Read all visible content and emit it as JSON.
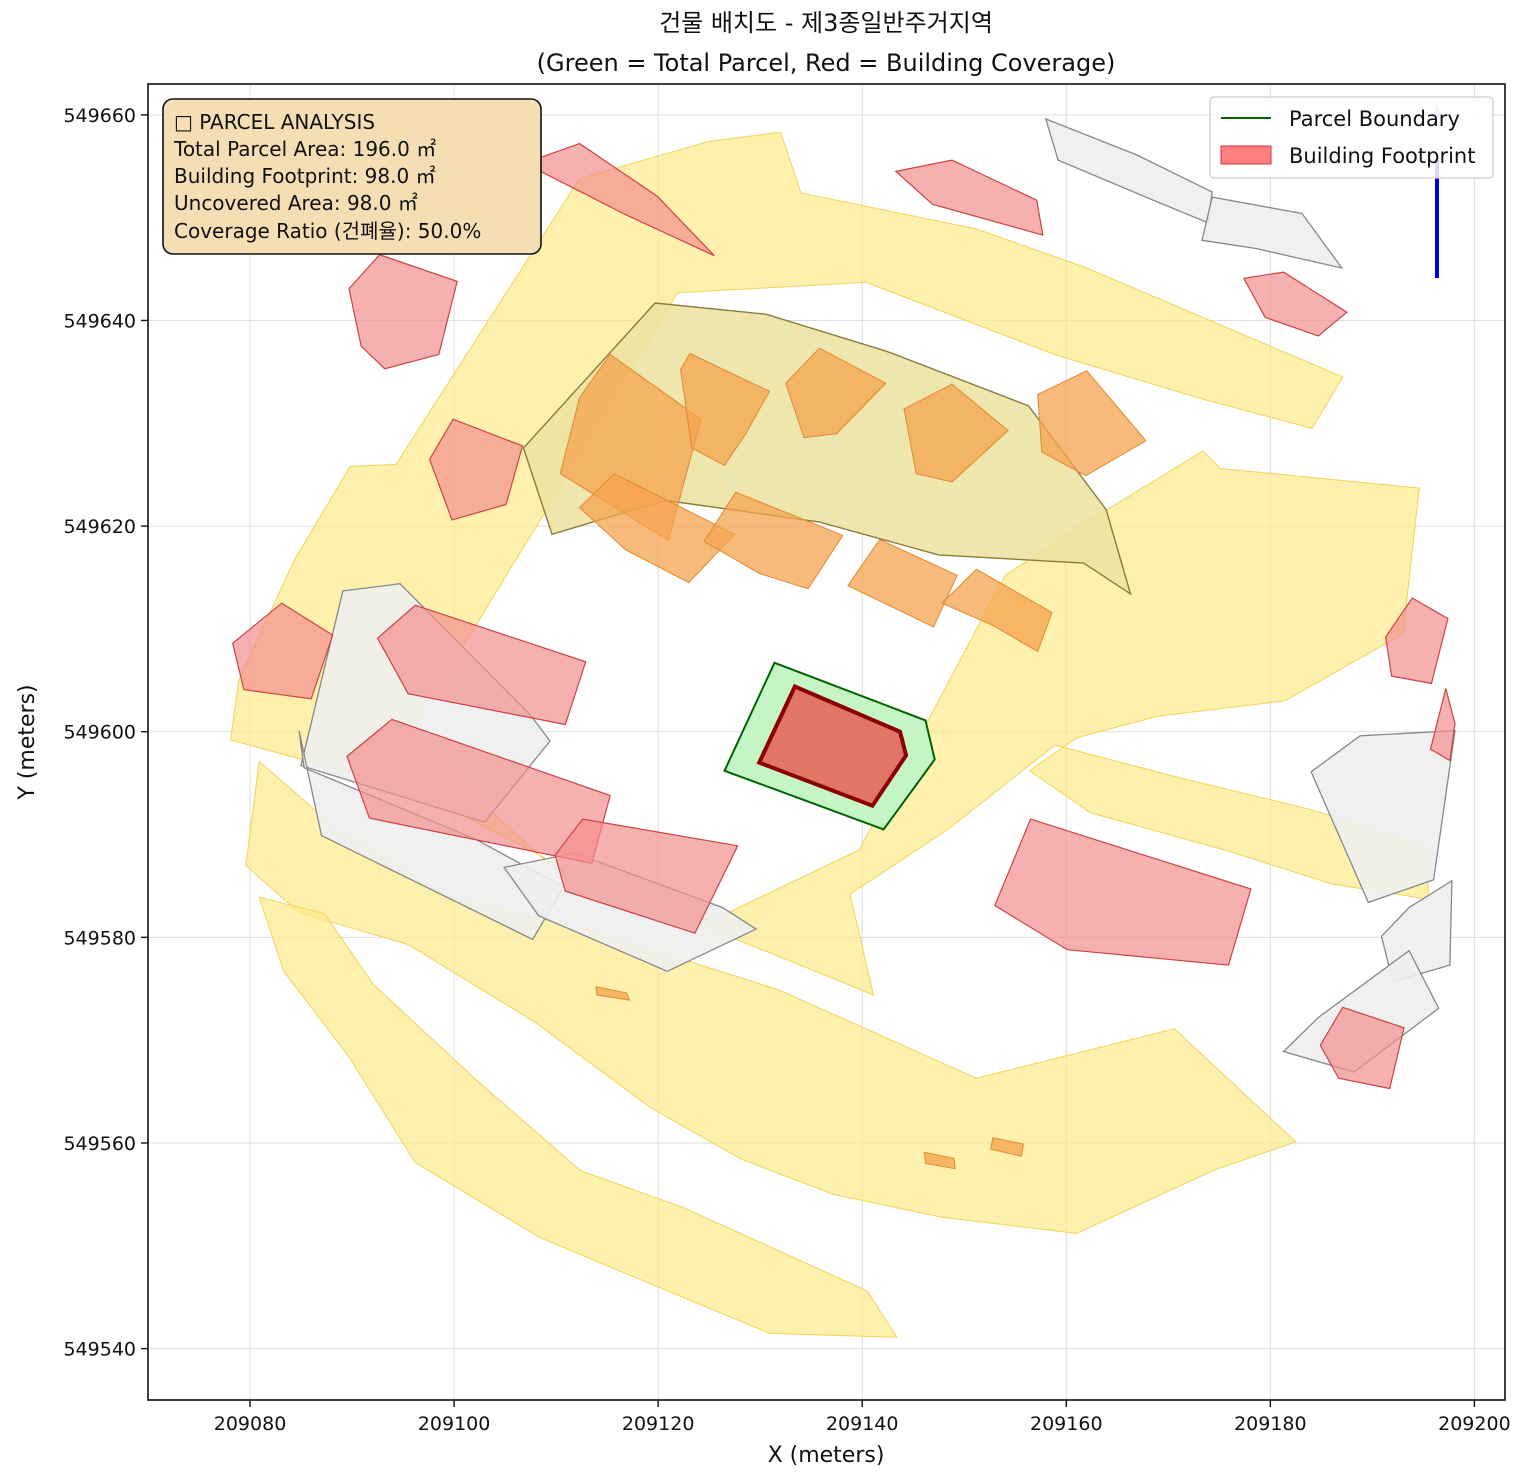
{
  "chart_data": {
    "type": "map",
    "title": "건물 배치도 - 제3종일반주거지역",
    "subtitle": "(Green = Total Parcel, Red = Building Coverage)",
    "xlabel": "X (meters)",
    "ylabel": "Y (meters)",
    "xlim": [
      209070,
      209203
    ],
    "ylim": [
      549535,
      549663
    ],
    "xticks": [
      209080,
      209100,
      209120,
      209140,
      209160,
      209180,
      209200
    ],
    "yticks": [
      549540,
      549560,
      549580,
      549600,
      549620,
      549640,
      549660
    ],
    "xtick_labels": [
      "209080",
      "209100",
      "209120",
      "209140",
      "209160",
      "209180",
      "209200"
    ],
    "ytick_labels": [
      "549540",
      "549560",
      "549580",
      "549600",
      "549620",
      "549640",
      "549660"
    ],
    "grid": true,
    "legend_placement": "top-right",
    "legend": [
      {
        "label": "Parcel Boundary",
        "kind": "line",
        "color": "#006400"
      },
      {
        "label": "Building Footprint",
        "kind": "patch",
        "color": "#ff7f7f"
      }
    ],
    "info_box": {
      "lines": [
        "□ PARCEL ANALYSIS",
        "Total Parcel Area: 196.0 ㎡",
        "Building Footprint: 98.0 ㎡",
        "Uncovered Area: 98.0 ㎡",
        "Coverage Ratio (건폐율): 50.0%"
      ]
    },
    "target_parcel": {
      "area_m2": 196.0,
      "polygon": [
        [
          209126.5,
          549596.2
        ],
        [
          209131.4,
          549606.7
        ],
        [
          209146.2,
          549601.1
        ],
        [
          209147.1,
          549597.3
        ],
        [
          209142.1,
          549590.5
        ]
      ]
    },
    "target_building": {
      "area_m2": 98.0,
      "polygon": [
        [
          209129.9,
          549597.0
        ],
        [
          209133.4,
          549604.4
        ],
        [
          209143.7,
          549600.0
        ],
        [
          209144.3,
          549597.7
        ],
        [
          209141.0,
          549592.8
        ]
      ]
    },
    "road_polygons": [
      [
        [
          209078.1,
          549599.2
        ],
        [
          209078.9,
          549605.1
        ],
        [
          209084.4,
          549616.8
        ],
        [
          209089.8,
          549625.8
        ],
        [
          209094.3,
          549626.0
        ],
        [
          209112.3,
          549653.8
        ],
        [
          209124.9,
          549657.4
        ],
        [
          209132.0,
          549658.3
        ],
        [
          209134.0,
          549652.4
        ],
        [
          209151.2,
          549648.9
        ],
        [
          209162.0,
          549645.1
        ],
        [
          209187.1,
          549634.5
        ],
        [
          209184.1,
          549629.5
        ],
        [
          209173.2,
          549632.4
        ],
        [
          209159.1,
          549636.6
        ],
        [
          209140.4,
          549643.7
        ],
        [
          209121.9,
          549642.7
        ],
        [
          209109.5,
          549622.3
        ],
        [
          209095.5,
          549599.6
        ],
        [
          209109.8,
          549586.7
        ],
        [
          209125.8,
          549581.9
        ],
        [
          209139.7,
          549588.5
        ],
        [
          209154.0,
          549615.2
        ],
        [
          209161.2,
          549619.9
        ],
        [
          209173.4,
          549627.3
        ],
        [
          209175.1,
          549625.6
        ],
        [
          209194.6,
          549623.7
        ],
        [
          209193.0,
          549609.5
        ],
        [
          209181.4,
          549603.0
        ],
        [
          209168.9,
          549601.5
        ],
        [
          209161.0,
          549599.4
        ],
        [
          209156.4,
          549596.2
        ],
        [
          209162.4,
          549592.1
        ],
        [
          209175.9,
          549588.4
        ],
        [
          209186.0,
          549585.2
        ],
        [
          209195.5,
          549583.7
        ],
        [
          209195.4,
          549589.0
        ],
        [
          209183.7,
          549592.5
        ],
        [
          209171.2,
          549595.5
        ],
        [
          209158.9,
          549598.7
        ],
        [
          209148.4,
          549590.5
        ],
        [
          209138.8,
          549584.2
        ],
        [
          209141.1,
          549574.4
        ],
        [
          209131.2,
          549578.4
        ],
        [
          209113.8,
          549585.2
        ],
        [
          209096.1,
          549594.3
        ]
      ],
      [
        [
          209079.6,
          549587.0
        ],
        [
          209084.8,
          549582.4
        ],
        [
          209095.5,
          549579.3
        ],
        [
          209108.0,
          549571.7
        ],
        [
          209119.3,
          549563.4
        ],
        [
          209128.2,
          549558.4
        ],
        [
          209137.2,
          549555.0
        ],
        [
          209147.7,
          549552.8
        ],
        [
          209161.0,
          549551.2
        ],
        [
          209174.6,
          549557.4
        ],
        [
          209182.5,
          549560.1
        ],
        [
          209170.6,
          549571.1
        ],
        [
          209151.2,
          549566.3
        ],
        [
          209131.8,
          549574.9
        ],
        [
          209115.0,
          549580.2
        ],
        [
          209099.3,
          549584.1
        ],
        [
          209088.3,
          549590.7
        ],
        [
          209080.9,
          549597.1
        ]
      ],
      [
        [
          209080.9,
          549583.9
        ],
        [
          209087.3,
          549582.3
        ],
        [
          209092.1,
          549575.4
        ],
        [
          209102.1,
          549566.2
        ],
        [
          209112.4,
          549557.3
        ],
        [
          209122.5,
          549553.7
        ],
        [
          209140.5,
          549545.6
        ],
        [
          209143.4,
          549541.1
        ],
        [
          209130.9,
          549541.5
        ],
        [
          209117.8,
          549546.9
        ],
        [
          209108.4,
          549550.8
        ],
        [
          209096.2,
          549558.1
        ],
        [
          209089.6,
          549568.5
        ],
        [
          209083.3,
          549576.7
        ]
      ]
    ],
    "gray_parcels": [
      [
        [
          209089.1,
          549613.7
        ],
        [
          209094.7,
          549614.4
        ],
        [
          209107.5,
          549601.6
        ],
        [
          209109.4,
          549599.1
        ],
        [
          209103.0,
          549591.2
        ],
        [
          209085.0,
          549596.7
        ]
      ],
      [
        [
          209084.8,
          549600.1
        ],
        [
          209085.3,
          549596.5
        ],
        [
          209102.2,
          549589.5
        ],
        [
          209110.7,
          549584.9
        ],
        [
          209107.7,
          549579.8
        ],
        [
          209087.0,
          549589.9
        ]
      ],
      [
        [
          209104.9,
          549586.8
        ],
        [
          209111.8,
          549588.2
        ],
        [
          209126.3,
          549582.9
        ],
        [
          209129.6,
          549580.8
        ],
        [
          209120.9,
          549576.7
        ],
        [
          209108.3,
          549582.1
        ]
      ],
      [
        [
          209158.0,
          549659.6
        ],
        [
          209159.2,
          549655.6
        ],
        [
          209167.8,
          549652.0
        ],
        [
          209173.9,
          549649.5
        ],
        [
          209174.3,
          549652.5
        ],
        [
          209166.9,
          549656.1
        ]
      ],
      [
        [
          209173.3,
          549647.8
        ],
        [
          209174.3,
          549652.0
        ],
        [
          209183.1,
          549650.4
        ],
        [
          209187.0,
          549645.1
        ],
        [
          209178.6,
          549647.0
        ]
      ],
      [
        [
          209184.0,
          549596.1
        ],
        [
          209188.8,
          549599.6
        ],
        [
          209198.1,
          549600.1
        ],
        [
          209196.0,
          549585.6
        ],
        [
          209189.6,
          549583.4
        ]
      ],
      [
        [
          209190.9,
          549580.1
        ],
        [
          209193.6,
          549582.9
        ],
        [
          209197.8,
          549585.5
        ],
        [
          209197.6,
          549577.3
        ],
        [
          209192.0,
          549575.7
        ]
      ],
      [
        [
          209181.3,
          549568.9
        ],
        [
          209184.7,
          549572.2
        ],
        [
          209193.6,
          549578.7
        ],
        [
          209196.5,
          549573.1
        ],
        [
          209188.2,
          549566.9
        ]
      ]
    ],
    "olive_blocks": [
      [
        [
          209106.8,
          549627.6
        ],
        [
          209109.6,
          549619.2
        ],
        [
          209120.7,
          549622.5
        ],
        [
          209135.8,
          549620.4
        ],
        [
          209147.5,
          549617.2
        ],
        [
          209161.7,
          549616.4
        ],
        [
          209166.3,
          549613.4
        ],
        [
          209163.9,
          549621.6
        ],
        [
          209156.3,
          549631.7
        ],
        [
          209142.4,
          549637.0
        ],
        [
          209130.6,
          549640.6
        ],
        [
          209119.7,
          549641.7
        ]
      ]
    ],
    "orange_buildings": [
      [
        [
          209112.3,
          549632.5
        ],
        [
          209115.3,
          549636.7
        ],
        [
          209124.2,
          549630.4
        ],
        [
          209121.0,
          549618.6
        ],
        [
          209110.4,
          549625.1
        ]
      ],
      [
        [
          209122.2,
          549635.2
        ],
        [
          209123.1,
          549636.8
        ],
        [
          209130.9,
          549633.1
        ],
        [
          209128.6,
          549629.0
        ],
        [
          209126.5,
          549625.9
        ],
        [
          209123.3,
          549627.6
        ]
      ],
      [
        [
          209132.5,
          549633.9
        ],
        [
          209135.8,
          549637.3
        ],
        [
          209142.3,
          549633.9
        ],
        [
          209137.5,
          549629.0
        ],
        [
          209134.3,
          549628.6
        ]
      ],
      [
        [
          209144.1,
          549631.4
        ],
        [
          209148.8,
          549633.8
        ],
        [
          209154.3,
          549629.3
        ],
        [
          209148.8,
          549624.3
        ],
        [
          209145.3,
          549625.1
        ]
      ],
      [
        [
          209157.2,
          549632.8
        ],
        [
          209162.0,
          549635.1
        ],
        [
          209167.8,
          549628.3
        ],
        [
          209161.9,
          549624.9
        ],
        [
          209157.6,
          549627.2
        ]
      ],
      [
        [
          209112.3,
          549621.8
        ],
        [
          209115.7,
          549625.1
        ],
        [
          209127.5,
          549619.2
        ],
        [
          209123.0,
          549614.5
        ],
        [
          209116.8,
          549617.7
        ]
      ],
      [
        [
          209124.5,
          549618.5
        ],
        [
          209127.6,
          549623.3
        ],
        [
          209138.1,
          549619.1
        ],
        [
          209134.7,
          549613.9
        ],
        [
          209129.9,
          549615.4
        ]
      ],
      [
        [
          209138.6,
          549614.2
        ],
        [
          209141.7,
          549618.7
        ],
        [
          209149.3,
          549615.2
        ],
        [
          209147.0,
          549610.2
        ],
        [
          209142.6,
          549612.3
        ]
      ],
      [
        [
          209147.8,
          549612.5
        ],
        [
          209151.2,
          549615.8
        ],
        [
          209158.6,
          549611.6
        ],
        [
          209157.2,
          549607.8
        ],
        [
          209152.7,
          549610.4
        ]
      ],
      [
        [
          209113.9,
          549575.2
        ],
        [
          209116.9,
          549574.6
        ],
        [
          209117.2,
          549573.9
        ],
        [
          209114.0,
          549574.4
        ]
      ],
      [
        [
          209146.1,
          549559.1
        ],
        [
          209149.0,
          549558.5
        ],
        [
          209149.1,
          549557.5
        ],
        [
          209146.2,
          549558.0
        ]
      ],
      [
        [
          209152.8,
          549560.5
        ],
        [
          209155.8,
          549559.9
        ],
        [
          209155.6,
          549558.7
        ],
        [
          209152.6,
          549559.4
        ]
      ]
    ],
    "red_buildings": [
      [
        [
          209089.7,
          549643.1
        ],
        [
          209092.7,
          549646.4
        ],
        [
          209100.3,
          549643.8
        ],
        [
          209098.5,
          549636.7
        ],
        [
          209093.2,
          549635.3
        ],
        [
          209090.9,
          549637.5
        ]
      ],
      [
        [
          209097.6,
          549626.5
        ],
        [
          209099.9,
          549630.4
        ],
        [
          209106.7,
          549627.8
        ],
        [
          209105.1,
          549622.1
        ],
        [
          209099.8,
          549620.6
        ]
      ],
      [
        [
          209078.3,
          549608.6
        ],
        [
          209083.1,
          549612.5
        ],
        [
          209088.1,
          549609.4
        ],
        [
          209086.0,
          549603.2
        ],
        [
          209079.4,
          549604.1
        ]
      ],
      [
        [
          209092.5,
          549609.1
        ],
        [
          209096.2,
          549612.3
        ],
        [
          209112.9,
          549606.8
        ],
        [
          209110.9,
          549600.7
        ],
        [
          209095.5,
          549603.7
        ]
      ],
      [
        [
          209089.5,
          549597.6
        ],
        [
          209093.9,
          549601.2
        ],
        [
          209115.3,
          549593.8
        ],
        [
          209113.5,
          549587.2
        ],
        [
          209091.7,
          549591.6
        ]
      ],
      [
        [
          209109.9,
          549588.0
        ],
        [
          209112.6,
          549591.5
        ],
        [
          209127.8,
          549588.9
        ],
        [
          209123.6,
          549580.4
        ],
        [
          209110.9,
          549584.5
        ]
      ],
      [
        [
          209153.0,
          549583.1
        ],
        [
          209156.5,
          549591.5
        ],
        [
          209178.1,
          549584.7
        ],
        [
          209175.9,
          549577.3
        ],
        [
          209160.1,
          549578.8
        ]
      ],
      [
        [
          209184.9,
          549569.5
        ],
        [
          209187.1,
          549573.2
        ],
        [
          209193.1,
          549571.2
        ],
        [
          209191.7,
          549565.3
        ],
        [
          209186.7,
          549566.3
        ]
      ],
      [
        [
          209106.9,
          549655.3
        ],
        [
          209116.8,
          549650.3
        ],
        [
          209125.5,
          549646.3
        ],
        [
          209119.9,
          549652.1
        ],
        [
          209112.3,
          549657.2
        ]
      ],
      [
        [
          209143.3,
          549654.5
        ],
        [
          209146.9,
          549651.3
        ],
        [
          209157.7,
          549648.3
        ],
        [
          209157.1,
          549651.7
        ],
        [
          209148.8,
          549655.6
        ]
      ],
      [
        [
          209177.4,
          549644.1
        ],
        [
          209181.3,
          549644.7
        ],
        [
          209187.5,
          549640.8
        ],
        [
          209184.7,
          549638.5
        ],
        [
          209179.5,
          549640.3
        ]
      ],
      [
        [
          209191.3,
          549609.2
        ],
        [
          209193.9,
          549613.0
        ],
        [
          209197.4,
          549611.0
        ],
        [
          209195.8,
          549604.7
        ],
        [
          209191.9,
          549605.4
        ]
      ],
      [
        [
          209195.7,
          549598.3
        ],
        [
          209197.2,
          549604.2
        ],
        [
          209198.1,
          549600.8
        ],
        [
          209197.6,
          549597.2
        ]
      ]
    ]
  }
}
